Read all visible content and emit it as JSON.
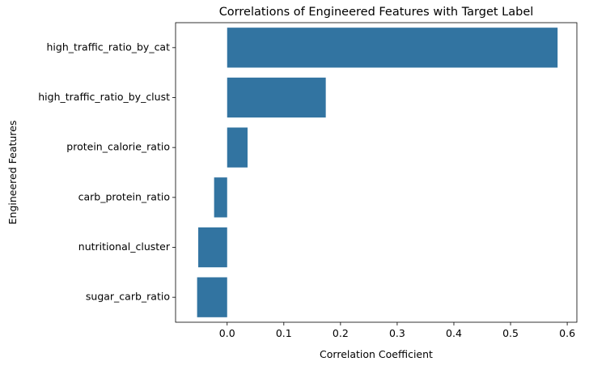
{
  "chart_data": {
    "type": "bar",
    "orientation": "horizontal",
    "title": "Correlations of Engineered Features with Target Label",
    "xlabel": "Correlation Coefficient",
    "ylabel": "Engineered Features",
    "categories": [
      "high_traffic_ratio_by_cat",
      "high_traffic_ratio_by_clust",
      "protein_calorie_ratio",
      "carb_protein_ratio",
      "nutritional_cluster",
      "sugar_carb_ratio"
    ],
    "values": [
      0.583,
      0.174,
      0.036,
      -0.023,
      -0.051,
      -0.053
    ],
    "xlim": [
      -0.091,
      0.617
    ],
    "xticks": [
      0.0,
      0.1,
      0.2,
      0.3,
      0.4,
      0.5,
      0.6
    ],
    "xtick_labels": [
      "0.0",
      "0.1",
      "0.2",
      "0.3",
      "0.4",
      "0.5",
      "0.6"
    ],
    "bar_color": "#3274a1",
    "grid": false,
    "legend": "none"
  }
}
